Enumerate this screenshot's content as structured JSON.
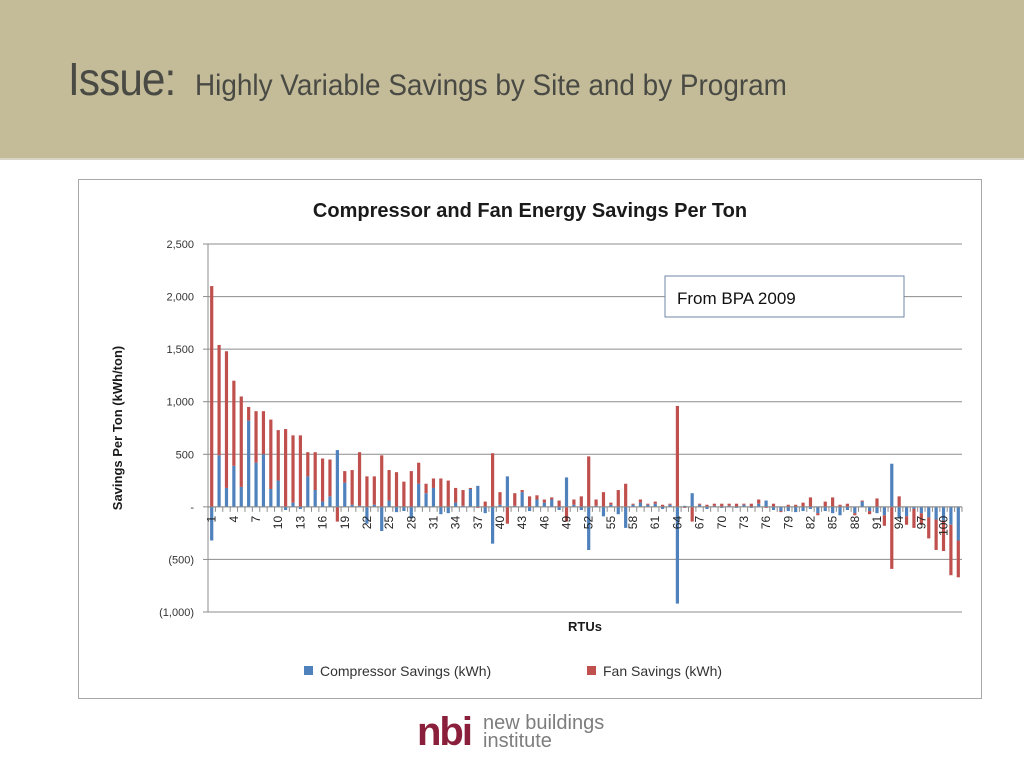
{
  "slide": {
    "title_prefix": "Issue:",
    "title_rest": "Highly Variable Savings by Site and by Program"
  },
  "annotation": {
    "text": "From BPA 2009"
  },
  "logo": {
    "mark": "nbi",
    "line1": "new buildings",
    "line2": "institute",
    "color": "#8a1f3b"
  },
  "chart_data": {
    "type": "bar",
    "stacked": true,
    "title": "Compressor and Fan Energy Savings Per Ton",
    "xlabel": "RTUs",
    "ylabel": "Savings Per Ton (kWh/ton)",
    "ylim": [
      -1000,
      2500
    ],
    "yticks": [
      2500,
      2000,
      1500,
      1000,
      500,
      0,
      -500,
      -1000
    ],
    "ytick_labels": [
      "2,500",
      "2,000",
      "1,500",
      "1,000",
      "500",
      "-",
      "(500)",
      "(1,000)"
    ],
    "grid": true,
    "legend": "bottom",
    "xtick_labels": [
      "1",
      "4",
      "7",
      "10",
      "13",
      "16",
      "19",
      "22",
      "25",
      "28",
      "31",
      "34",
      "37",
      "40",
      "43",
      "46",
      "49",
      "52",
      "55",
      "58",
      "61",
      "64",
      "67",
      "70",
      "73",
      "76",
      "79",
      "82",
      "85",
      "88",
      "91",
      "94",
      "97",
      "100"
    ],
    "xtick_every": 3,
    "categories_count": 102,
    "series": [
      {
        "name": "Compressor Savings (kWh)",
        "color": "#4f81bd",
        "values": [
          -320,
          490,
          180,
          390,
          190,
          820,
          420,
          500,
          170,
          250,
          -30,
          40,
          -20,
          290,
          160,
          50,
          100,
          540,
          230,
          20,
          10,
          -160,
          20,
          -230,
          60,
          -50,
          -40,
          -110,
          220,
          130,
          180,
          -70,
          -60,
          40,
          10,
          170,
          200,
          -60,
          -350,
          20,
          290,
          10,
          140,
          -40,
          70,
          40,
          70,
          -30,
          280,
          20,
          -30,
          -410,
          10,
          -90,
          20,
          -70,
          -200,
          20,
          40,
          20,
          30,
          -20,
          20,
          -920,
          10,
          130,
          20,
          -20,
          10,
          -10,
          10,
          -10,
          20,
          -10,
          30,
          60,
          -30,
          -40,
          -40,
          -50,
          -40,
          -20,
          -60,
          -40,
          -60,
          -80,
          -30,
          -60,
          50,
          -40,
          -60,
          -80,
          410,
          -110,
          -90,
          -20,
          -60,
          -100,
          -120,
          -130,
          -170,
          -320
        ],
        "negative_fan_extra": true
      },
      {
        "name": "Fan Savings (kWh)",
        "color": "#c0504d",
        "values": [
          2100,
          1050,
          1300,
          810,
          860,
          130,
          490,
          410,
          660,
          480,
          740,
          640,
          680,
          230,
          360,
          410,
          350,
          -140,
          110,
          330,
          510,
          290,
          270,
          490,
          290,
          330,
          240,
          340,
          200,
          90,
          90,
          270,
          250,
          140,
          150,
          10,
          -10,
          50,
          510,
          120,
          -160,
          120,
          20,
          100,
          40,
          30,
          20,
          60,
          -140,
          50,
          100,
          480,
          60,
          140,
          20,
          160,
          220,
          10,
          30,
          10,
          20,
          20,
          10,
          960,
          -10,
          -140,
          10,
          20,
          20,
          30,
          20,
          30,
          10,
          30,
          40,
          -10,
          30,
          -10,
          20,
          20,
          40,
          90,
          -20,
          50,
          90,
          20,
          30,
          -20,
          10,
          -30,
          80,
          -100,
          -590,
          100,
          -80,
          -180,
          -110,
          -200,
          -290,
          -290,
          -480,
          -350
        ]
      }
    ]
  }
}
